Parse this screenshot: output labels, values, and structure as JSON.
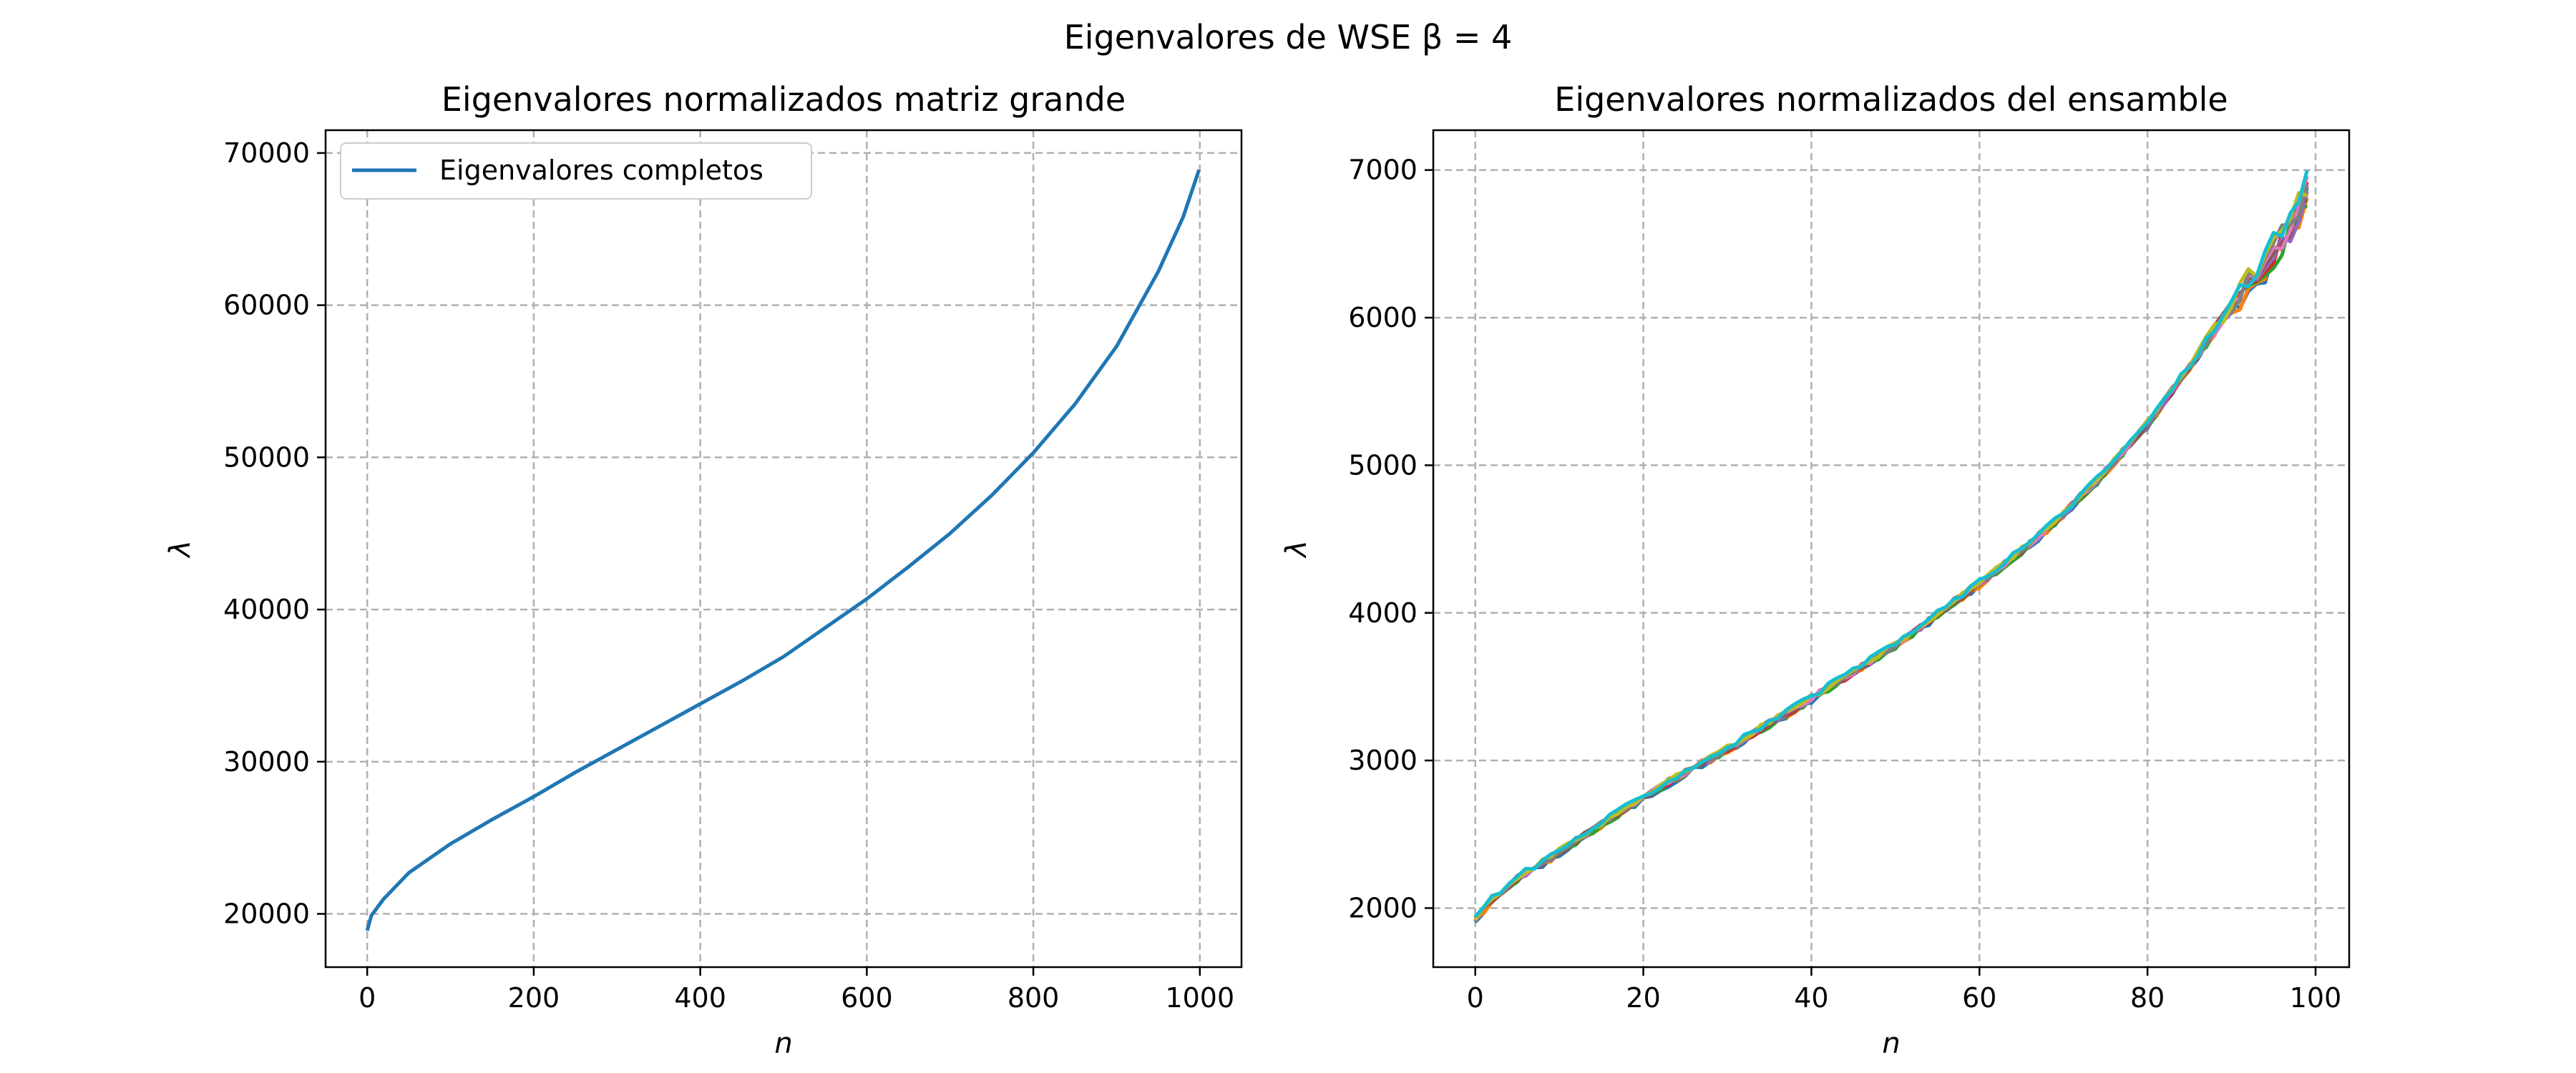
{
  "figure": {
    "suptitle": "Eigenvalores de WSE β = 4"
  },
  "chart_data": [
    {
      "type": "line",
      "title": "Eigenvalores normalizados matriz grande",
      "xlabel": "n",
      "ylabel": "λ",
      "xlim": [
        -50,
        1050
      ],
      "ylim": [
        16500,
        71500
      ],
      "xticks": [
        0,
        200,
        400,
        600,
        800,
        1000
      ],
      "xtick_labels": [
        "0",
        "200",
        "400",
        "600",
        "800",
        "1000"
      ],
      "yticks": [
        20000,
        30000,
        40000,
        50000,
        60000,
        70000
      ],
      "ytick_labels": [
        "20000",
        "30000",
        "40000",
        "50000",
        "60000",
        "70000"
      ],
      "grid": true,
      "legend": {
        "position": "upper-left",
        "entries": [
          "Eigenvalores completos"
        ]
      },
      "series": [
        {
          "name": "Eigenvalores completos",
          "color": "#1f77b4",
          "x": [
            0,
            5,
            20,
            50,
            100,
            150,
            200,
            250,
            300,
            350,
            400,
            450,
            500,
            550,
            600,
            650,
            700,
            750,
            800,
            850,
            900,
            950,
            980,
            999
          ],
          "y": [
            18900,
            19900,
            21000,
            22700,
            24600,
            26200,
            27700,
            29300,
            30800,
            32300,
            33800,
            35300,
            36900,
            38800,
            40700,
            42800,
            45000,
            47500,
            50300,
            53500,
            57300,
            62200,
            65800,
            68900
          ]
        }
      ]
    },
    {
      "type": "line",
      "title": "Eigenvalores normalizados del ensamble",
      "xlabel": "n",
      "ylabel": "λ",
      "xlim": [
        -5,
        104
      ],
      "ylim": [
        1600,
        7270
      ],
      "xticks": [
        0,
        20,
        40,
        60,
        80,
        100
      ],
      "xtick_labels": [
        "0",
        "20",
        "40",
        "60",
        "80",
        "100"
      ],
      "yticks": [
        2000,
        3000,
        4000,
        5000,
        6000,
        7000
      ],
      "ytick_labels": [
        "2000",
        "3000",
        "4000",
        "5000",
        "6000",
        "7000"
      ],
      "grid": true,
      "series_count": 10,
      "x": [
        0,
        2,
        5,
        10,
        15,
        20,
        25,
        30,
        35,
        40,
        45,
        50,
        55,
        60,
        65,
        70,
        75,
        80,
        85,
        90,
        95,
        98,
        99
      ],
      "y": [
        1930,
        2060,
        2200,
        2380,
        2570,
        2750,
        2920,
        3080,
        3250,
        3420,
        3600,
        3780,
        3990,
        4200,
        4420,
        4670,
        4960,
        5280,
        5670,
        6080,
        6450,
        6700,
        6850
      ],
      "series_colors": [
        "#1f77b4",
        "#ff7f0e",
        "#2ca02c",
        "#d62728",
        "#9467bd",
        "#8c564b",
        "#e377c2",
        "#7f7f7f",
        "#bcbd22",
        "#17becf"
      ]
    }
  ]
}
